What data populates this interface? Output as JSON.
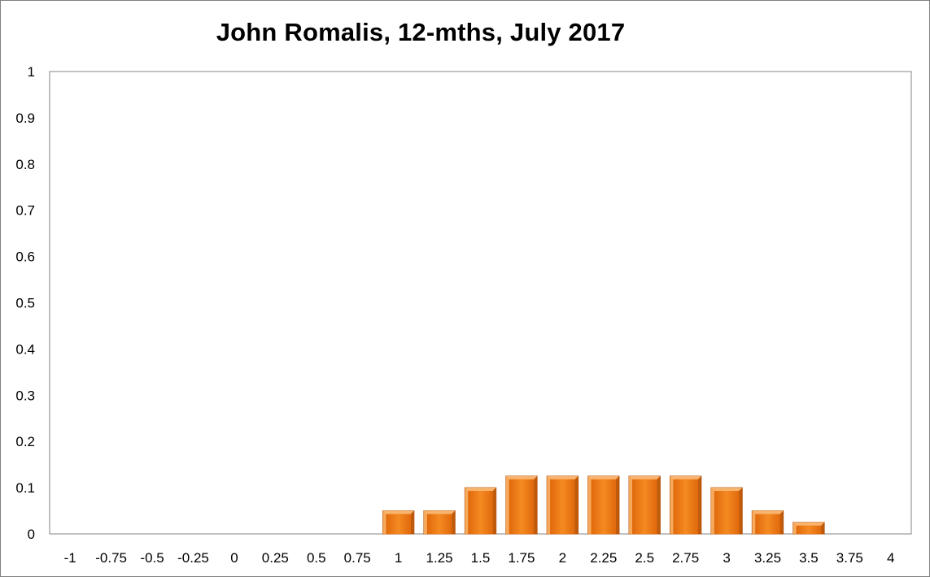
{
  "chart_data": {
    "type": "bar",
    "title": "John Romalis, 12-mths, July 2017",
    "xlabel": "",
    "ylabel": "",
    "categories": [
      "-1",
      "-0.75",
      "-0.5",
      "-0.25",
      "0",
      "0.25",
      "0.5",
      "0.75",
      "1",
      "1.25",
      "1.5",
      "1.75",
      "2",
      "2.25",
      "2.5",
      "2.75",
      "3",
      "3.25",
      "3.5",
      "3.75",
      "4"
    ],
    "values": [
      0,
      0,
      0,
      0,
      0,
      0,
      0,
      0,
      0.05,
      0.05,
      0.1,
      0.125,
      0.125,
      0.125,
      0.125,
      0.125,
      0.1,
      0.05,
      0.025,
      0,
      0
    ],
    "ylim": [
      0,
      1
    ],
    "yticks": [
      "0",
      "0.1",
      "0.2",
      "0.3",
      "0.4",
      "0.5",
      "0.6",
      "0.7",
      "0.8",
      "0.9",
      "1"
    ],
    "grid": false,
    "legend": "none",
    "colors": {
      "bar_fill": "#f07e17",
      "bar_light": "#f9b56e",
      "bar_dark": "#b5520a",
      "axis": "#868686"
    }
  }
}
